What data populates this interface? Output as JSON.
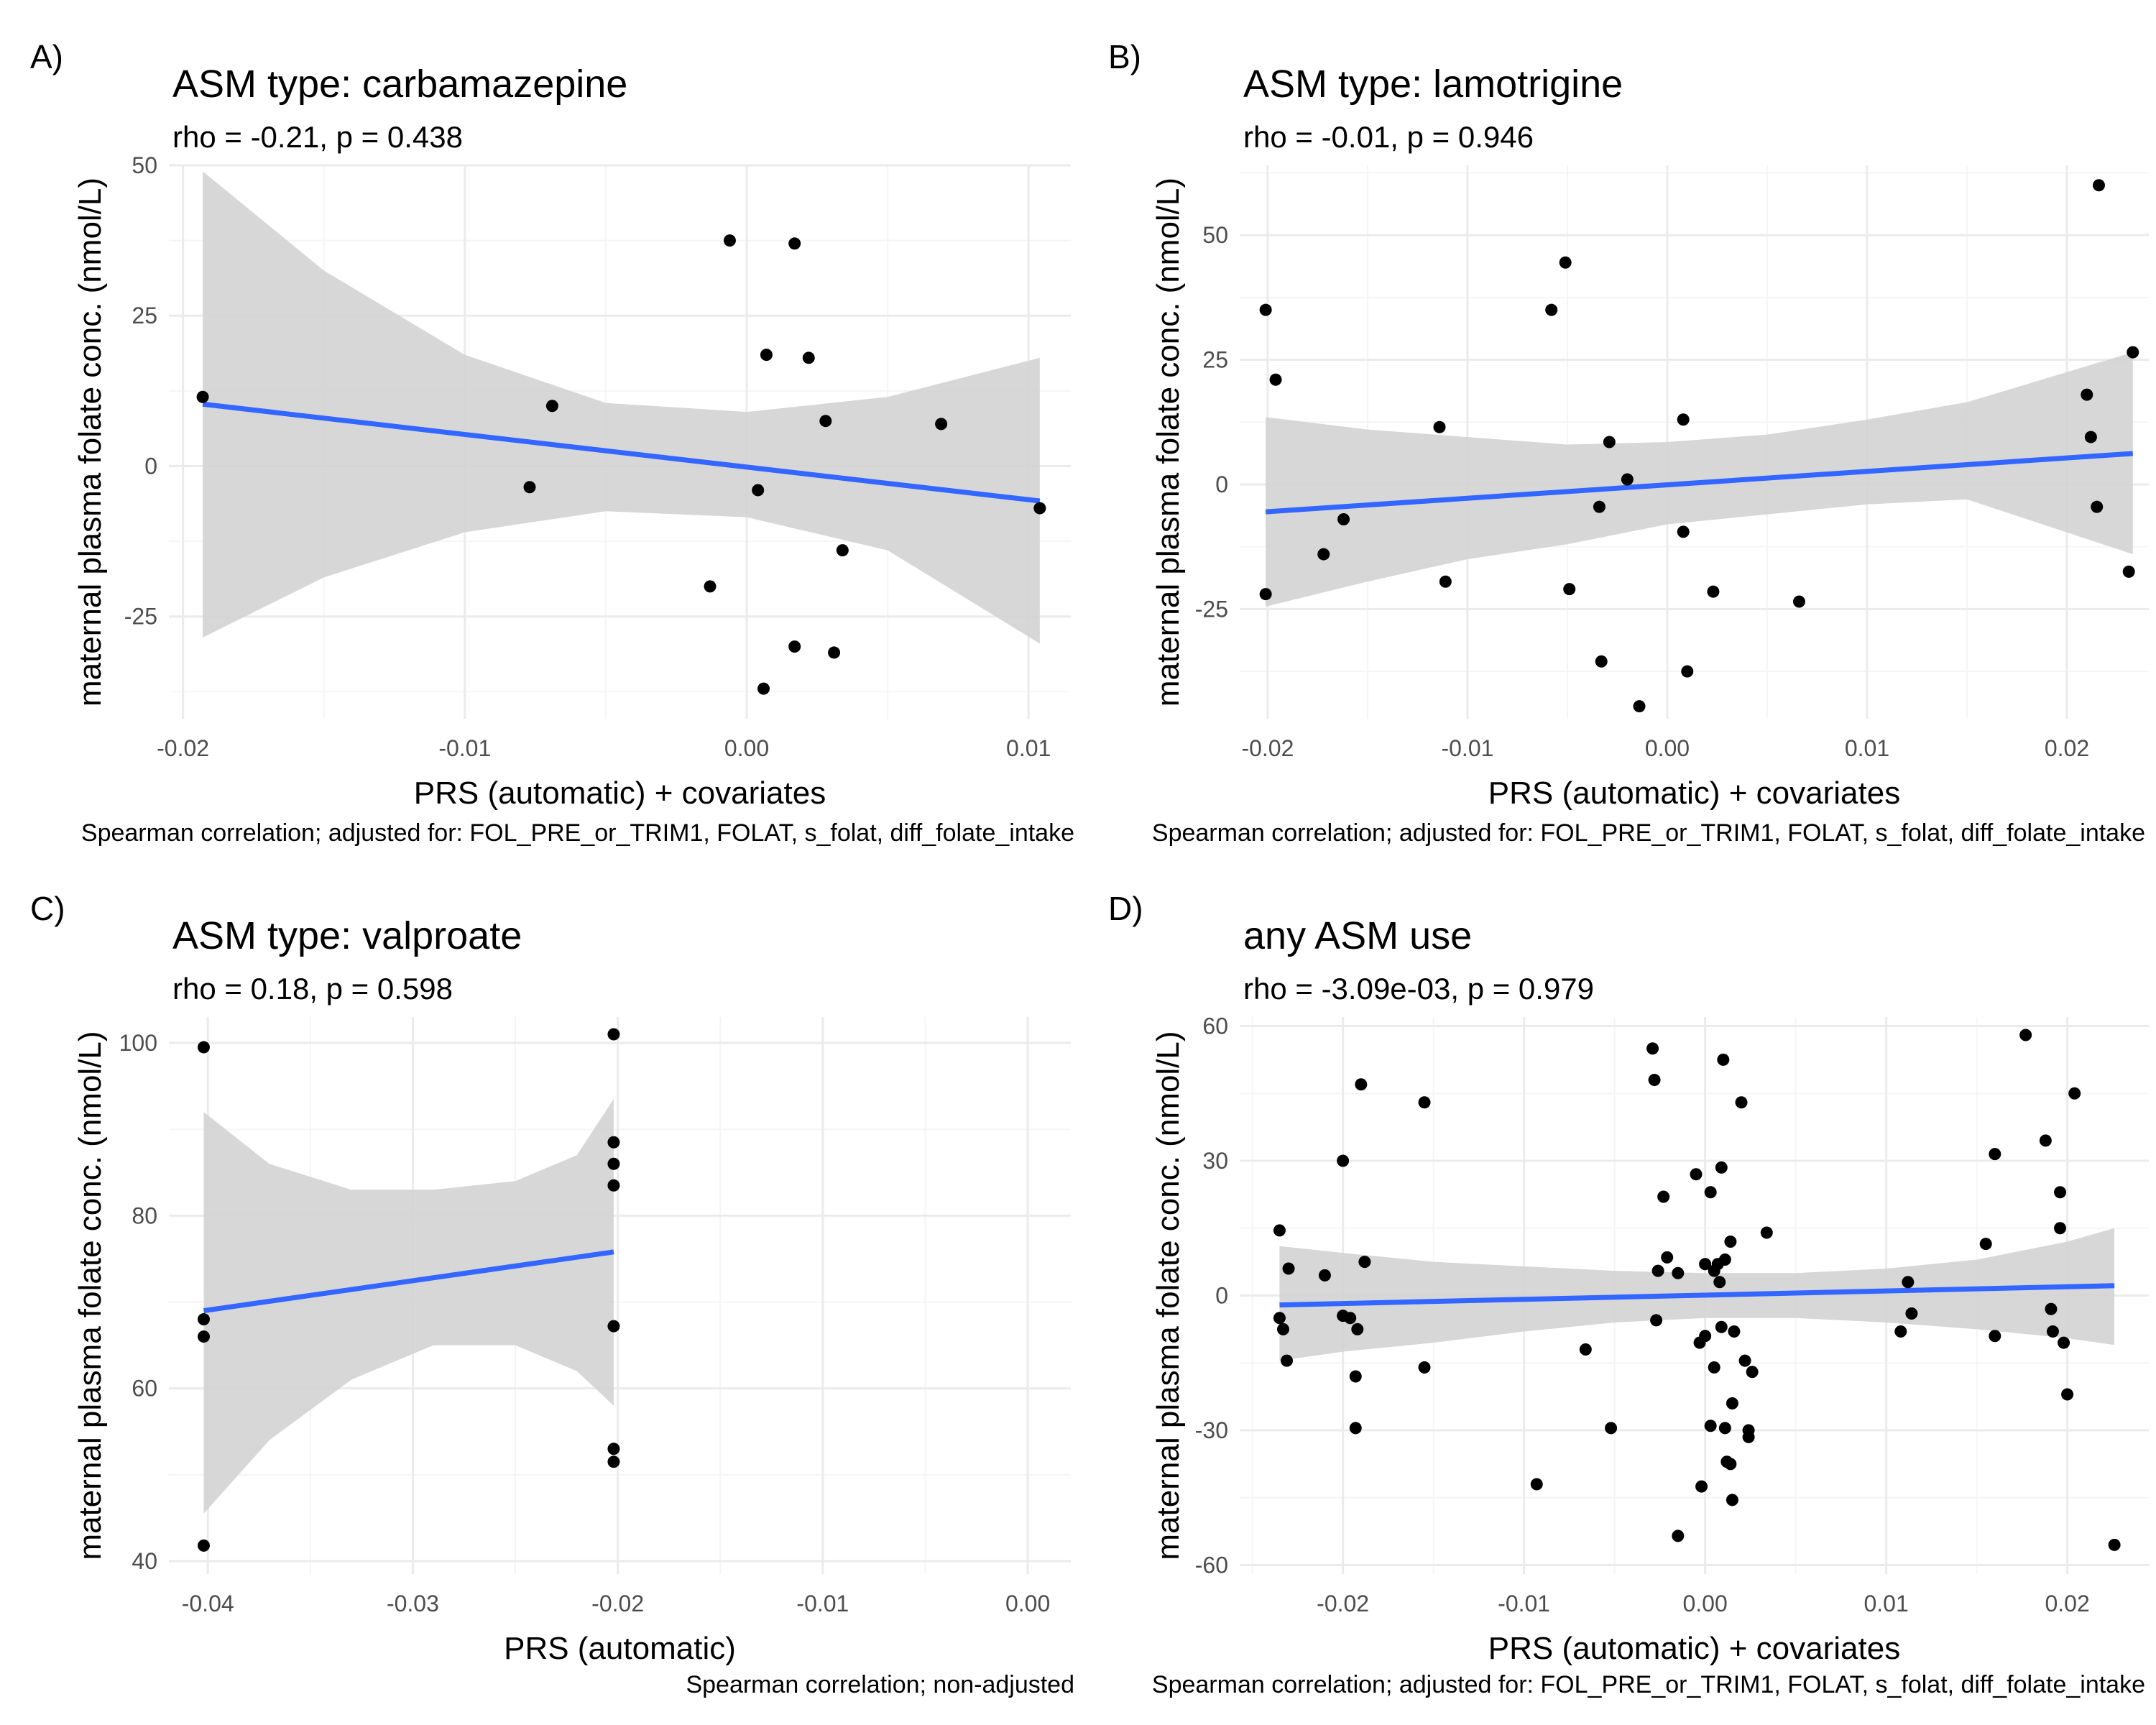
{
  "panels": [
    {
      "letter": "A)",
      "title": "ASM type: carbamazepine",
      "subtitle": "rho = -0.21, p = 0.438",
      "xlabel": "PRS (automatic) + covariates",
      "ylabel": "maternal plasma folate conc. (nmol/L)",
      "caption": "Spearman correlation; adjusted for: FOL_PRE_or_TRIM1, FOLAT, s_folat, diff_folate_intake"
    },
    {
      "letter": "B)",
      "title": "ASM type: lamotrigine",
      "subtitle": "rho = -0.01, p = 0.946",
      "xlabel": "PRS (automatic) + covariates",
      "ylabel": "maternal plasma folate conc. (nmol/L)",
      "caption": "Spearman correlation; adjusted for: FOL_PRE_or_TRIM1, FOLAT, s_folat, diff_folate_intake"
    },
    {
      "letter": "C)",
      "title": "ASM type: valproate",
      "subtitle": "rho = 0.18, p = 0.598",
      "xlabel": "PRS (automatic)",
      "ylabel": "maternal plasma folate conc. (nmol/L)",
      "caption": "Spearman correlation; non-adjusted"
    },
    {
      "letter": "D)",
      "title": "any ASM use",
      "subtitle": "rho = -3.09e-03, p = 0.979",
      "xlabel": "PRS (automatic) + covariates",
      "ylabel": "maternal plasma folate conc. (nmol/L)",
      "caption": "Spearman correlation; adjusted for: FOL_PRE_or_TRIM1, FOLAT, s_folat, diff_folate_intake"
    }
  ],
  "colors": {
    "fit_line": "#3366FF",
    "ribbon": "#d3d3d3",
    "points": "#000000",
    "grid_major": "#ebebeb",
    "grid_minor": "#f5f5f5"
  },
  "chart_data": [
    {
      "type": "scatter",
      "xlim": [
        -0.0205,
        0.0115
      ],
      "ylim": [
        -42,
        50
      ],
      "xticks": [
        -0.02,
        -0.01,
        0.0,
        0.01
      ],
      "xtick_labels": [
        "-0.02",
        "-0.01",
        "0.00",
        "0.01"
      ],
      "yticks": [
        -25,
        0,
        25,
        50
      ],
      "ytick_labels": [
        "-25",
        "0",
        "25",
        "50"
      ],
      "points": [
        [
          -0.0193,
          11.5
        ],
        [
          -0.0069,
          10
        ],
        [
          -0.0077,
          -3.5
        ],
        [
          -0.0006,
          37.5
        ],
        [
          0.0017,
          37
        ],
        [
          0.0007,
          18.5
        ],
        [
          0.0022,
          18
        ],
        [
          0.0028,
          7.5
        ],
        [
          0.0069,
          7
        ],
        [
          0.0004,
          -4
        ],
        [
          0.0104,
          -7
        ],
        [
          0.0034,
          -14
        ],
        [
          -0.0013,
          -20
        ],
        [
          0.0017,
          -30
        ],
        [
          0.0031,
          -31
        ],
        [
          0.0006,
          -37
        ]
      ],
      "fit": {
        "x": [
          -0.0193,
          0.0104
        ],
        "y": [
          10.3,
          -5.8
        ]
      },
      "ci": {
        "x": [
          -0.0193,
          -0.015,
          -0.01,
          -0.005,
          0.0,
          0.005,
          0.0104
        ],
        "upper": [
          49,
          32.5,
          18.5,
          10.5,
          9,
          11.5,
          18
        ],
        "lower": [
          -28.5,
          -18.5,
          -11,
          -7.5,
          -8.5,
          -14,
          -29.5
        ]
      },
      "grid": true
    },
    {
      "type": "scatter",
      "xlim": [
        -0.0214,
        0.0241
      ],
      "ylim": [
        -47,
        64
      ],
      "xticks": [
        -0.02,
        -0.01,
        0.0,
        0.01,
        0.02
      ],
      "xtick_labels": [
        "-0.02",
        "-0.01",
        "0.00",
        "0.01",
        "0.02"
      ],
      "yticks": [
        -25,
        0,
        25,
        50
      ],
      "ytick_labels": [
        "-25",
        "0",
        "25",
        "50"
      ],
      "points": [
        [
          -0.0201,
          35
        ],
        [
          -0.0196,
          21
        ],
        [
          -0.0201,
          -22
        ],
        [
          -0.0172,
          -14
        ],
        [
          -0.0162,
          -7
        ],
        [
          -0.0114,
          11.5
        ],
        [
          -0.0111,
          -19.5
        ],
        [
          -0.0058,
          35
        ],
        [
          -0.0051,
          44.5
        ],
        [
          -0.0049,
          -21
        ],
        [
          -0.0029,
          8.5
        ],
        [
          -0.002,
          1
        ],
        [
          -0.0034,
          -4.5
        ],
        [
          -0.0033,
          -35.5
        ],
        [
          -0.0014,
          -44.5
        ],
        [
          0.0008,
          13
        ],
        [
          0.0008,
          -9.5
        ],
        [
          0.001,
          -37.5
        ],
        [
          0.0023,
          -21.5
        ],
        [
          0.0066,
          -23.5
        ],
        [
          0.021,
          18
        ],
        [
          0.0212,
          9.5
        ],
        [
          0.0215,
          -4.5
        ],
        [
          0.0216,
          60
        ],
        [
          0.0231,
          -17.5
        ],
        [
          0.0233,
          26.5
        ]
      ],
      "fit": {
        "x": [
          -0.0201,
          0.0233
        ],
        "y": [
          -5.5,
          6.2
        ]
      },
      "ci": {
        "x": [
          -0.0201,
          -0.015,
          -0.01,
          -0.005,
          0.0,
          0.005,
          0.01,
          0.015,
          0.0233
        ],
        "upper": [
          13.5,
          11,
          9.5,
          8,
          8.5,
          10,
          13,
          16.5,
          26.5
        ],
        "lower": [
          -24.5,
          -19.5,
          -15,
          -12,
          -8,
          -6,
          -4,
          -3,
          -14
        ]
      },
      "grid": true
    },
    {
      "type": "scatter",
      "xlim": [
        -0.0419,
        0.0021
      ],
      "ylim": [
        38.5,
        103
      ],
      "xticks": [
        -0.04,
        -0.03,
        -0.02,
        -0.01,
        0.0
      ],
      "xtick_labels": [
        "-0.04",
        "-0.03",
        "-0.02",
        "-0.01",
        "0.00"
      ],
      "yticks": [
        40,
        60,
        80,
        100
      ],
      "ytick_labels": [
        "40",
        "60",
        "80",
        "100"
      ],
      "points": [
        [
          -0.0402,
          99.5
        ],
        [
          -0.0402,
          68
        ],
        [
          -0.0402,
          66
        ],
        [
          -0.0402,
          41.8
        ],
        [
          -0.0202,
          101
        ],
        [
          -0.0202,
          88.5
        ],
        [
          -0.0202,
          86
        ],
        [
          -0.0202,
          83.5
        ],
        [
          -0.0202,
          67.2
        ],
        [
          -0.0202,
          53
        ],
        [
          -0.0202,
          51.5
        ]
      ],
      "fit": {
        "x": [
          -0.0402,
          -0.0202
        ],
        "y": [
          69,
          75.8
        ]
      },
      "ci": {
        "x": [
          -0.0402,
          -0.037,
          -0.033,
          -0.029,
          -0.025,
          -0.022,
          -0.0202
        ],
        "upper": [
          92,
          86,
          83,
          83,
          84,
          87,
          93.5
        ],
        "lower": [
          45.5,
          54,
          61,
          65,
          65,
          62,
          58
        ]
      },
      "grid": true
    },
    {
      "type": "scatter",
      "xlim": [
        -0.0257,
        0.0245
      ],
      "ylim": [
        -62,
        62
      ],
      "xticks": [
        -0.02,
        -0.01,
        0.0,
        0.01,
        0.02
      ],
      "xtick_labels": [
        "-0.02",
        "-0.01",
        "0.00",
        "0.01",
        "0.02"
      ],
      "yticks": [
        -60,
        -30,
        0,
        30,
        60
      ],
      "ytick_labels": [
        "-60",
        "-30",
        "0",
        "30",
        "60"
      ],
      "points": [
        [
          -0.0235,
          14.5
        ],
        [
          -0.023,
          6
        ],
        [
          -0.0235,
          -5
        ],
        [
          -0.0233,
          -7.5
        ],
        [
          -0.0231,
          -14.5
        ],
        [
          -0.02,
          30
        ],
        [
          -0.02,
          -4.5
        ],
        [
          -0.0196,
          -5
        ],
        [
          -0.0193,
          -29.5
        ],
        [
          -0.0193,
          -18
        ],
        [
          -0.0192,
          -7.5
        ],
        [
          -0.019,
          47
        ],
        [
          -0.0188,
          7.5
        ],
        [
          -0.021,
          4.5
        ],
        [
          -0.0155,
          43
        ],
        [
          -0.0155,
          -16
        ],
        [
          -0.0093,
          -42
        ],
        [
          -0.0066,
          -12
        ],
        [
          -0.0052,
          -29.5
        ],
        [
          -0.0029,
          55
        ],
        [
          -0.0028,
          48
        ],
        [
          -0.0027,
          -5.5
        ],
        [
          -0.0026,
          5.5
        ],
        [
          -0.0023,
          22
        ],
        [
          -0.0021,
          8.5
        ],
        [
          -0.0015,
          5
        ],
        [
          -0.0005,
          27
        ],
        [
          -0.0003,
          -10.5
        ],
        [
          0.0,
          7
        ],
        [
          0.0,
          -9
        ],
        [
          0.0003,
          23
        ],
        [
          0.0005,
          5.5
        ],
        [
          0.0005,
          -16
        ],
        [
          0.0007,
          7
        ],
        [
          0.0008,
          3
        ],
        [
          0.0009,
          28.5
        ],
        [
          0.0009,
          -7
        ],
        [
          0.001,
          52.5
        ],
        [
          0.0011,
          8
        ],
        [
          0.0011,
          -29.5
        ],
        [
          0.0012,
          -37
        ],
        [
          0.0014,
          12
        ],
        [
          0.0014,
          -37.5
        ],
        [
          0.0016,
          -8
        ],
        [
          0.0015,
          -24
        ],
        [
          0.0015,
          -45.5
        ],
        [
          0.0003,
          -29
        ],
        [
          -0.0002,
          -42.5
        ],
        [
          -0.0015,
          -53.5
        ],
        [
          0.002,
          43
        ],
        [
          0.0022,
          -14.5
        ],
        [
          0.0024,
          -30
        ],
        [
          0.0024,
          -31.5
        ],
        [
          0.0026,
          -17
        ],
        [
          0.0034,
          14
        ],
        [
          0.0108,
          -8
        ],
        [
          0.0112,
          3
        ],
        [
          0.0114,
          -4
        ],
        [
          0.0155,
          11.5
        ],
        [
          0.016,
          31.5
        ],
        [
          0.016,
          -9
        ],
        [
          0.0177,
          58
        ],
        [
          0.0188,
          34.5
        ],
        [
          0.0191,
          -3
        ],
        [
          0.0192,
          -8
        ],
        [
          0.0196,
          23
        ],
        [
          0.0196,
          15
        ],
        [
          0.0198,
          -10.5
        ],
        [
          0.02,
          -22
        ],
        [
          0.0204,
          45
        ],
        [
          0.0226,
          -55.5
        ]
      ],
      "fit": {
        "x": [
          -0.0235,
          0.0226
        ],
        "y": [
          -2.1,
          2.2
        ]
      },
      "ci": {
        "x": [
          -0.0235,
          -0.02,
          -0.015,
          -0.01,
          -0.005,
          0.0,
          0.005,
          0.01,
          0.015,
          0.02,
          0.0226
        ],
        "upper": [
          11,
          9.5,
          7.5,
          6.5,
          5.5,
          5,
          5,
          6,
          8,
          12,
          15
        ],
        "lower": [
          -14.5,
          -12.5,
          -10.5,
          -8,
          -6,
          -5,
          -5,
          -6,
          -7.5,
          -9.5,
          -11
        ]
      },
      "grid": true
    }
  ]
}
